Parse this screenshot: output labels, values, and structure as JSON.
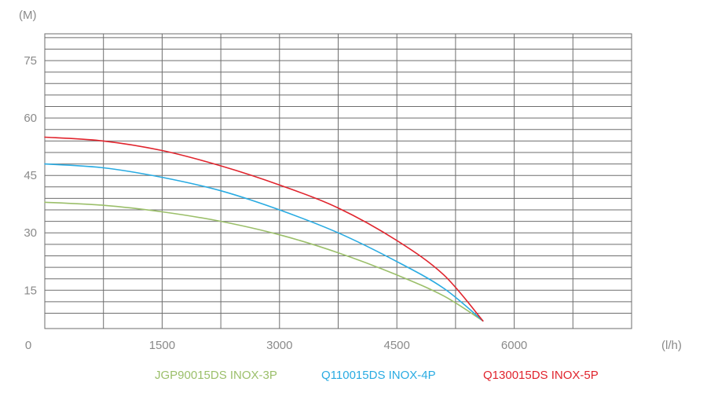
{
  "chart_data": {
    "type": "line",
    "title": "",
    "xlabel": "",
    "ylabel": "",
    "x_unit": "(l/h)",
    "y_unit": "(M)",
    "xlim": [
      0,
      7500
    ],
    "ylim": [
      5,
      82
    ],
    "x_ticks": [
      0,
      1500,
      3000,
      4500,
      6000
    ],
    "x_tick_labels": [
      "0",
      "1500",
      "3000",
      "4500",
      "6000"
    ],
    "y_ticks": [
      15,
      30,
      45,
      60,
      75
    ],
    "y_tick_labels": [
      "15",
      "30",
      "45",
      "60",
      "75"
    ],
    "grid": true,
    "legend_position": "bottom",
    "colors": {
      "grid": "#6e6e6e",
      "tick_text": "#8a8a8a",
      "JGP90015DS INOX-3P": "#9bbf6a",
      "Q110015DS INOX-4P": "#29abe2",
      "Q130015DS INOX-5P": "#e0242d"
    },
    "series": [
      {
        "name": "JGP90015DS INOX-3P",
        "x": [
          0,
          750,
          1500,
          2250,
          3000,
          3750,
          4500,
          5100,
          5600
        ],
        "y": [
          38,
          37.2,
          35.5,
          33,
          29.5,
          24.8,
          19,
          13.5,
          7
        ]
      },
      {
        "name": "Q110015DS INOX-4P",
        "x": [
          0,
          750,
          1500,
          2250,
          3000,
          3750,
          4500,
          5100,
          5600
        ],
        "y": [
          48,
          47,
          44.5,
          41,
          36,
          30,
          22.5,
          15.5,
          7
        ]
      },
      {
        "name": "Q130015DS INOX-5P",
        "x": [
          0,
          750,
          1500,
          2250,
          3000,
          3750,
          4500,
          5100,
          5600
        ],
        "y": [
          55,
          54,
          51.5,
          47.5,
          42.5,
          36.5,
          28,
          19,
          7
        ]
      }
    ]
  }
}
